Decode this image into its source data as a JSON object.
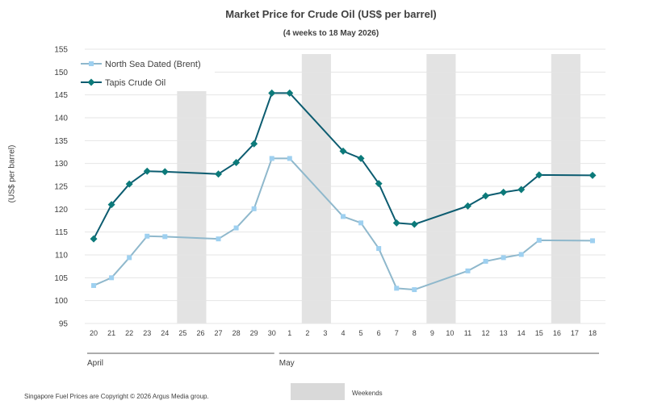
{
  "chart_data": {
    "type": "line",
    "title": "Market Price for Crude  Oil (US$ per barrel)",
    "subtitle": "(4 weeks to 18 May 2026)",
    "ylabel": "(US$ per barrel)",
    "ylim": [
      95,
      155
    ],
    "yticks": [
      95,
      100,
      105,
      110,
      115,
      120,
      125,
      130,
      135,
      140,
      145,
      150,
      155
    ],
    "categories": [
      "20",
      "21",
      "22",
      "23",
      "24",
      "25",
      "26",
      "27",
      "28",
      "29",
      "30",
      "1",
      "2",
      "3",
      "4",
      "5",
      "6",
      "7",
      "8",
      "9",
      "10",
      "11",
      "12",
      "13",
      "14",
      "15",
      "16",
      "17",
      "18"
    ],
    "month_labels": [
      "April",
      "May"
    ],
    "weekend_bands": [
      [
        "25",
        "26"
      ],
      [
        "2",
        "3"
      ],
      [
        "9",
        "10"
      ],
      [
        "16",
        "17"
      ]
    ],
    "grid": true,
    "legend_position": "top-left",
    "series": [
      {
        "name": "North Sea Dated (Brent)",
        "color": "#8fb8cc",
        "marker_color": "#9ed0f0",
        "marker": "square",
        "points": [
          [
            "20",
            103.3
          ],
          [
            "21",
            105.0
          ],
          [
            "22",
            109.4
          ],
          [
            "23",
            114.1
          ],
          [
            "24",
            114.0
          ],
          [
            "27",
            113.5
          ],
          [
            "28",
            115.9
          ],
          [
            "29",
            120.1
          ],
          [
            "30",
            131.1
          ],
          [
            "1",
            131.1
          ],
          [
            "4",
            118.4
          ],
          [
            "5",
            117.0
          ],
          [
            "6",
            111.4
          ],
          [
            "7",
            102.7
          ],
          [
            "8",
            102.4
          ],
          [
            "11",
            106.5
          ],
          [
            "12",
            108.6
          ],
          [
            "13",
            109.4
          ],
          [
            "14",
            110.1
          ],
          [
            "15",
            113.2
          ],
          [
            "18",
            113.1
          ]
        ]
      },
      {
        "name": "Tapis Crude Oil",
        "color": "#0c5c70",
        "marker_color": "#0c7a7a",
        "marker": "diamond",
        "points": [
          [
            "20",
            113.5
          ],
          [
            "21",
            121.0
          ],
          [
            "22",
            125.5
          ],
          [
            "23",
            128.3
          ],
          [
            "24",
            128.2
          ],
          [
            "27",
            127.7
          ],
          [
            "28",
            130.2
          ],
          [
            "29",
            134.3
          ],
          [
            "30",
            145.4
          ],
          [
            "1",
            145.4
          ],
          [
            "4",
            132.7
          ],
          [
            "5",
            131.1
          ],
          [
            "6",
            125.6
          ],
          [
            "7",
            117.0
          ],
          [
            "8",
            116.7
          ],
          [
            "11",
            120.7
          ],
          [
            "12",
            122.9
          ],
          [
            "13",
            123.7
          ],
          [
            "14",
            124.3
          ],
          [
            "15",
            127.5
          ],
          [
            "18",
            127.4
          ]
        ]
      }
    ]
  },
  "footer": {
    "copyright": "Singapore Fuel Prices are Copyright © 2026 Argus Media group.",
    "weekends_label": "Weekends"
  }
}
